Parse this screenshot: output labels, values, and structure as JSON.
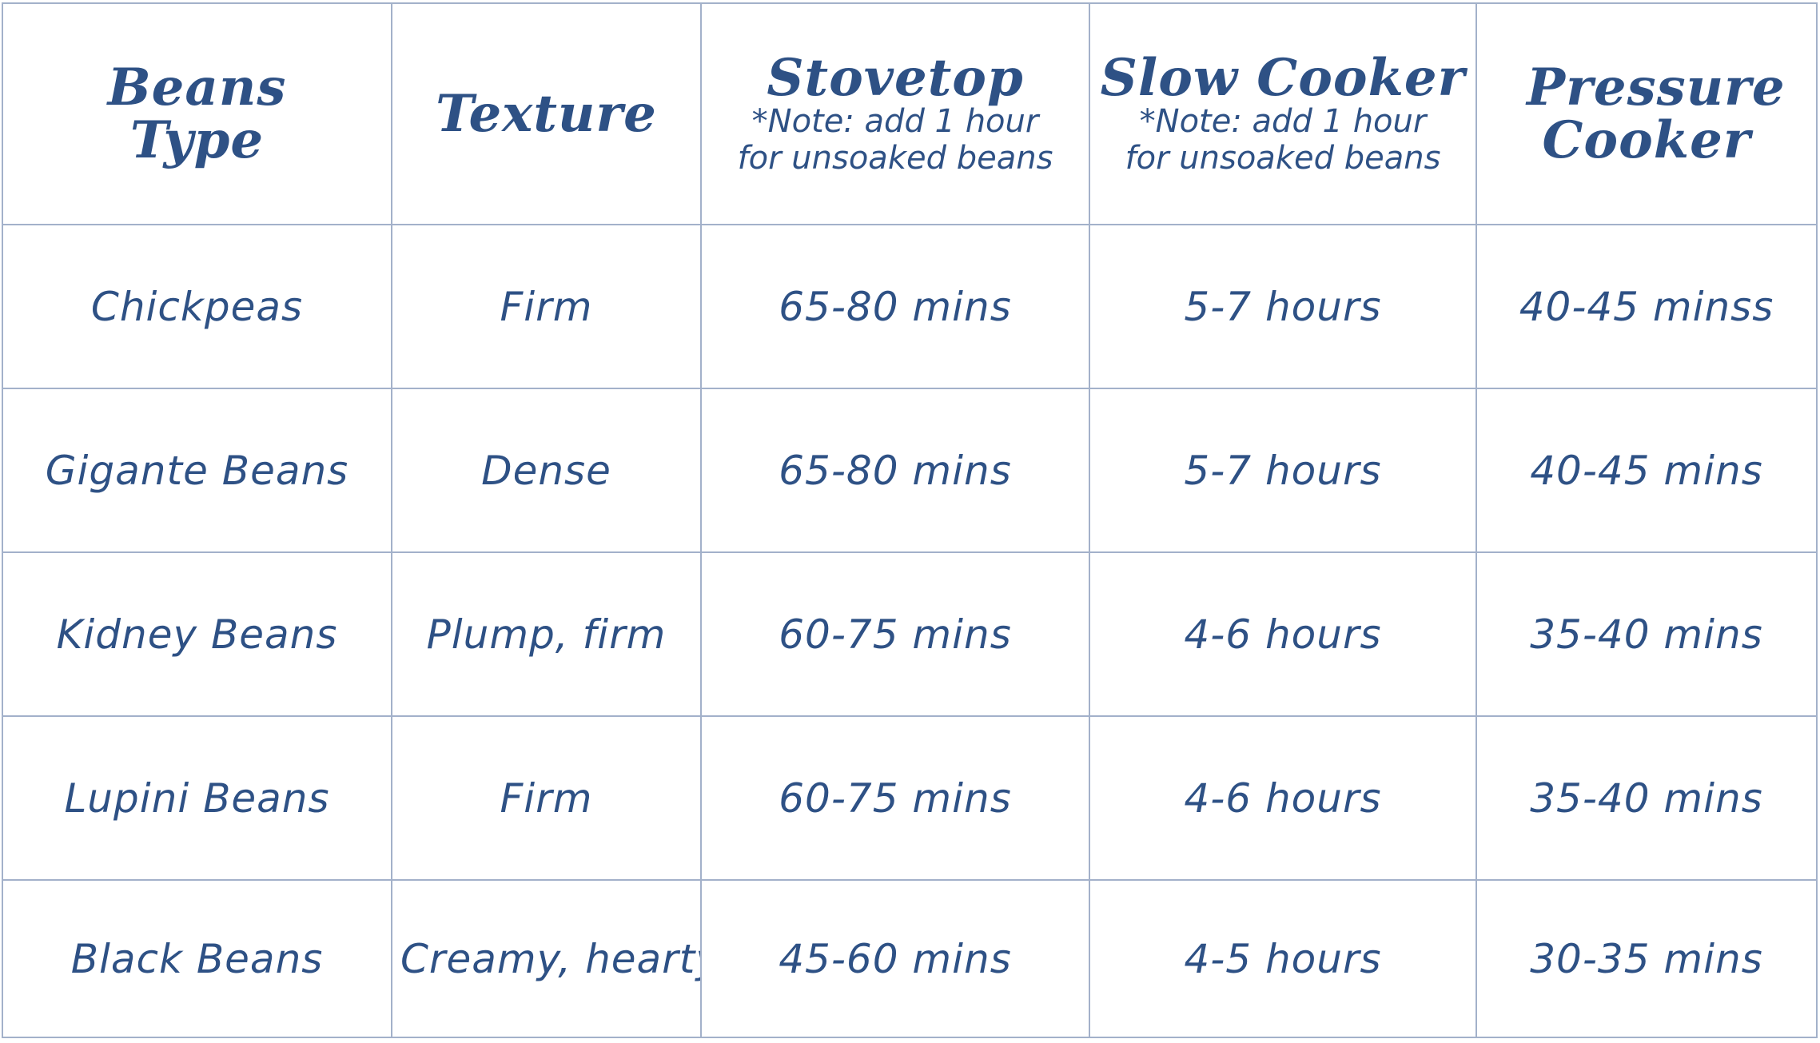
{
  "headers": [
    {
      "title": "Beans Type",
      "note": ""
    },
    {
      "title": "Texture",
      "note": ""
    },
    {
      "title": "Stovetop",
      "note": "*Note: add 1 hour for unsoaked beans"
    },
    {
      "title": "Slow Cooker",
      "note": "*Note: add 1 hour for unsoaked beans"
    },
    {
      "title": "Pressure Cooker",
      "note": ""
    }
  ],
  "rows": [
    {
      "bean": "Chickpeas",
      "texture": "Firm",
      "stovetop": "65-80 mins",
      "slow_cooker": "5-7 hours",
      "pressure_cooker": "40-45 minss"
    },
    {
      "bean": "Gigante Beans",
      "texture": "Dense",
      "stovetop": "65-80 mins",
      "slow_cooker": "5-7 hours",
      "pressure_cooker": "40-45 mins"
    },
    {
      "bean": "Kidney Beans",
      "texture": "Plump, firm",
      "stovetop": "60-75 mins",
      "slow_cooker": "4-6 hours",
      "pressure_cooker": "35-40 mins"
    },
    {
      "bean": "Lupini Beans",
      "texture": "Firm",
      "stovetop": "60-75 mins",
      "slow_cooker": "4-6 hours",
      "pressure_cooker": "35-40 mins"
    },
    {
      "bean": "Black Beans",
      "texture": "Creamy, hearty",
      "stovetop": "45-60 mins",
      "slow_cooker": "4-5 hours",
      "pressure_cooker": "30-35 mins"
    }
  ],
  "colors": {
    "text": "#2e5185",
    "grid": "#a3b1ca",
    "background": "#ffffff"
  }
}
